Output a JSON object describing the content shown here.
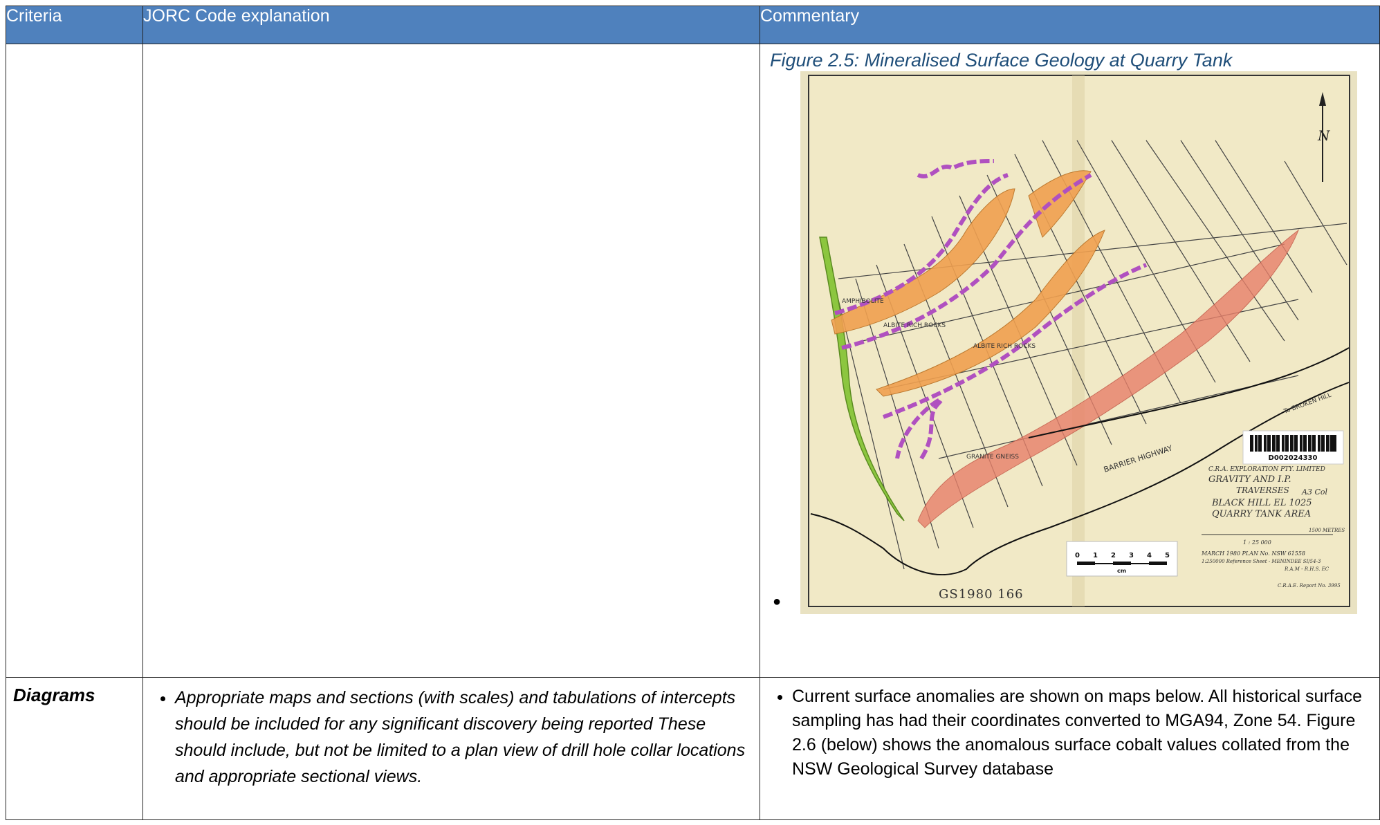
{
  "header": {
    "criteria": "Criteria",
    "explanation": "JORC Code explanation",
    "commentary": "Commentary"
  },
  "figure": {
    "caption": "Figure 2.5: Mineralised Surface Geology at Quarry Tank",
    "map": {
      "north_label": "N",
      "map_annotations": [
        "ALBITE RICH ROCKS",
        "ALBITE RICH ROCKS",
        "AMPHIBOLITE",
        "GRANITE GNEISS",
        "BARRIER HIGHWAY",
        "To BROKEN HILL"
      ],
      "barcode_number": "D002024330",
      "title_block": [
        "C.R.A. EXPLORATION PTY. LIMITED",
        "GRAVITY AND I.P.",
        "TRAVERSES",
        "BLACK HILL EL 1025",
        "QUARRY TANK AREA"
      ],
      "sheet_note": "A3 Col",
      "scale_text": "1 : 25 000",
      "scale_end": "1500 METRES",
      "plan_info": [
        "MARCH 1980   PLAN No. NSW 61558",
        "1:250000 Reference Sheet - MENINDEE SI/54-3",
        "R.A.M - R.H.S. EC"
      ],
      "report_no": "C.R.A.E. Report No. 3995",
      "ruler_ticks": [
        "0",
        "1",
        "2",
        "3",
        "4",
        "5"
      ],
      "ruler_unit": "cm",
      "stamp": "GS1980 166",
      "colors": {
        "paper": "#efe6c0",
        "orange": "#f0a050",
        "red": "#e8806a",
        "purple": "#b050c0",
        "green": "#88c040"
      }
    }
  },
  "diagrams": {
    "criteria": "Diagrams",
    "explanation": "Appropriate maps and sections (with scales) and tabulations of intercepts should be included for any significant discovery being reported These should include, but not be limited to a plan view of drill hole collar locations and appropriate sectional views.",
    "commentary": "Current surface anomalies are shown on maps below.  All historical surface sampling has had their coordinates converted to MGA94, Zone 54. Figure 2.6 (below) shows the anomalous surface cobalt values collated from the NSW Geological Survey database"
  }
}
